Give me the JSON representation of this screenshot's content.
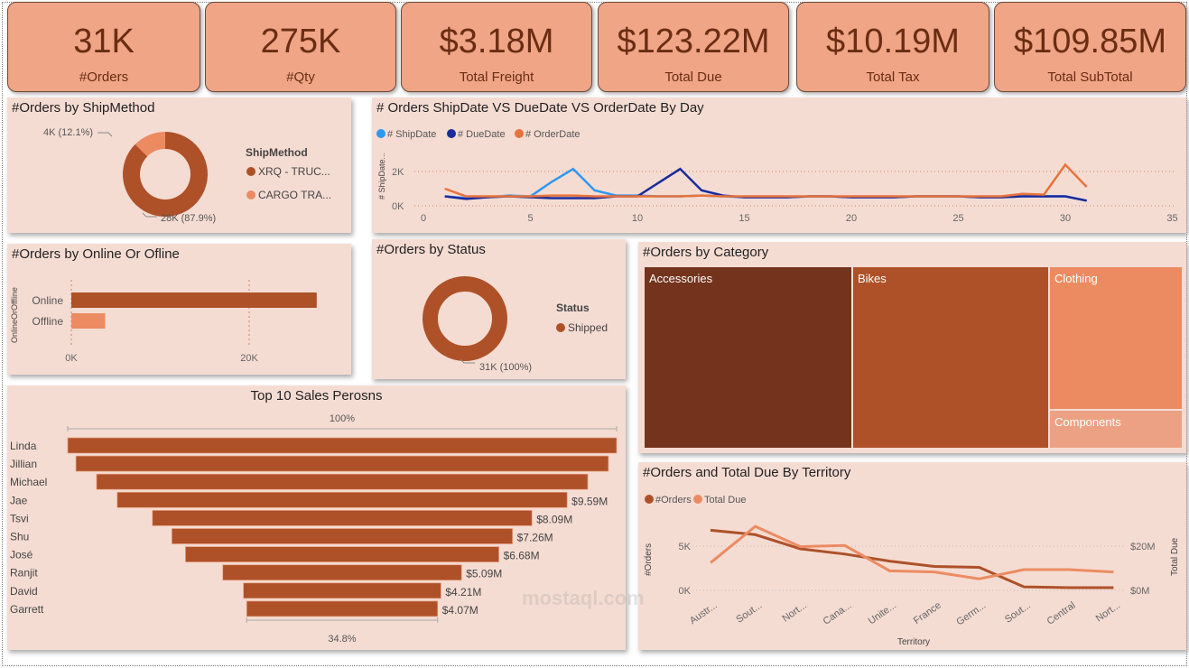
{
  "kpis": [
    {
      "value": "31K",
      "label": "#Orders"
    },
    {
      "value": "275K",
      "label": "#Qty"
    },
    {
      "value": "$3.18M",
      "label": "Total Freight"
    },
    {
      "value": "$123.22M",
      "label": "Total Due"
    },
    {
      "value": "$10.19M",
      "label": "Total Tax"
    },
    {
      "value": "$109.85M",
      "label": "Total SubTotal"
    }
  ],
  "colors": {
    "dark": "#ae5128",
    "light": "#ec8b62",
    "panel": "#f5dcd3",
    "card": "#efa586",
    "ship": "#2e98f0",
    "due": "#1a2b9c",
    "order": "#e8723c",
    "accessories": "#74331d"
  },
  "watermark": "mostaql.com",
  "chart_data": [
    {
      "type": "pie",
      "title": "#Orders by ShipMethod",
      "legend_title": "ShipMethod",
      "slices": [
        {
          "name": "XRQ - TRUC...",
          "value": 28000,
          "label": "28K (87.9%)"
        },
        {
          "name": "CARGO TRA...",
          "value": 4000,
          "label": "4K (12.1%)"
        }
      ]
    },
    {
      "type": "line",
      "title": "# Orders ShipDate VS DueDate VS OrderDate By Day",
      "ylabel": "# ShipDate...",
      "xlim": [
        0,
        35
      ],
      "xticks": [
        "0",
        "5",
        "10",
        "15",
        "20",
        "25",
        "30",
        "35"
      ],
      "yticks": [
        "0K",
        "2K"
      ],
      "x": [
        1,
        2,
        3,
        4,
        5,
        6,
        7,
        8,
        9,
        10,
        11,
        12,
        13,
        14,
        15,
        16,
        17,
        18,
        19,
        20,
        21,
        22,
        23,
        24,
        25,
        26,
        27,
        28,
        29,
        30,
        31
      ],
      "series": [
        {
          "name": "# ShipDate",
          "values": [
            550,
            450,
            500,
            600,
            550,
            1400,
            2150,
            900,
            600,
            600,
            550,
            550,
            600,
            550,
            500,
            500,
            500,
            550,
            550,
            500,
            500,
            500,
            550,
            550,
            550,
            500,
            500,
            550,
            550,
            550,
            300
          ]
        },
        {
          "name": "# DueDate",
          "values": [
            550,
            400,
            500,
            550,
            500,
            450,
            450,
            450,
            550,
            550,
            1350,
            2150,
            900,
            600,
            500,
            500,
            500,
            550,
            550,
            500,
            500,
            500,
            550,
            550,
            550,
            500,
            500,
            550,
            550,
            550,
            300
          ]
        },
        {
          "name": "# OrderDate",
          "values": [
            1000,
            550,
            550,
            550,
            550,
            600,
            600,
            550,
            550,
            550,
            550,
            550,
            600,
            550,
            550,
            550,
            550,
            550,
            550,
            550,
            550,
            550,
            550,
            550,
            550,
            550,
            550,
            700,
            650,
            2400,
            1100
          ]
        }
      ]
    },
    {
      "type": "bar",
      "title": "#Orders by Online Or Ofline",
      "ylabel": "OnlineOrOffline",
      "categories": [
        "Online",
        "Offline"
      ],
      "values": [
        27600,
        3800
      ],
      "xticks": [
        "0K",
        "20K"
      ]
    },
    {
      "type": "pie",
      "title": "#Orders by Status",
      "legend_title": "Status",
      "slices": [
        {
          "name": "Shipped",
          "value": 31000,
          "label": "31K (100%)"
        }
      ]
    },
    {
      "type": "treemap",
      "title": "#Orders by Category",
      "categories": [
        "Accessories",
        "Bikes",
        "Clothing",
        "Components"
      ],
      "values": [
        19000,
        18000,
        9600,
        2600
      ]
    },
    {
      "type": "funnel",
      "title": "Top 10 Sales Perosns",
      "top_label": "100%",
      "bottom_label": "34.8%",
      "categories": [
        "Linda",
        "Jillian",
        "Michael",
        "Jae",
        "Tsvi",
        "Shu",
        "José",
        "Ranjit",
        "David",
        "Garrett"
      ],
      "values": [
        11.7,
        11.35,
        10.47,
        9.59,
        8.09,
        7.26,
        6.68,
        5.09,
        4.21,
        4.07
      ],
      "labels": [
        "",
        "",
        "",
        "$9.59M",
        "$8.09M",
        "$7.26M",
        "$6.68M",
        "$5.09M",
        "$4.21M",
        "$4.07M"
      ]
    },
    {
      "type": "line",
      "title": "#Orders and Total Due By Territory",
      "xlabel": "Territory",
      "ylabel": "#Orders",
      "y2label": "Total Due",
      "yticks": [
        "0K",
        "5K"
      ],
      "y2ticks": [
        "$0M",
        "$20M"
      ],
      "categories": [
        "Austr...",
        "Sout...",
        "Nort...",
        "Cana...",
        "Unite...",
        "France",
        "Germ...",
        "Sout...",
        "Central",
        "Nort..."
      ],
      "series": [
        {
          "name": "#Orders",
          "values": [
            6800,
            6300,
            4700,
            4100,
            3300,
            2700,
            2600,
            400,
            300,
            300
          ]
        },
        {
          "name": "Total Due",
          "values": [
            12,
            27.8,
            19,
            19.5,
            8.5,
            8,
            5,
            9,
            9,
            8
          ]
        }
      ]
    }
  ]
}
